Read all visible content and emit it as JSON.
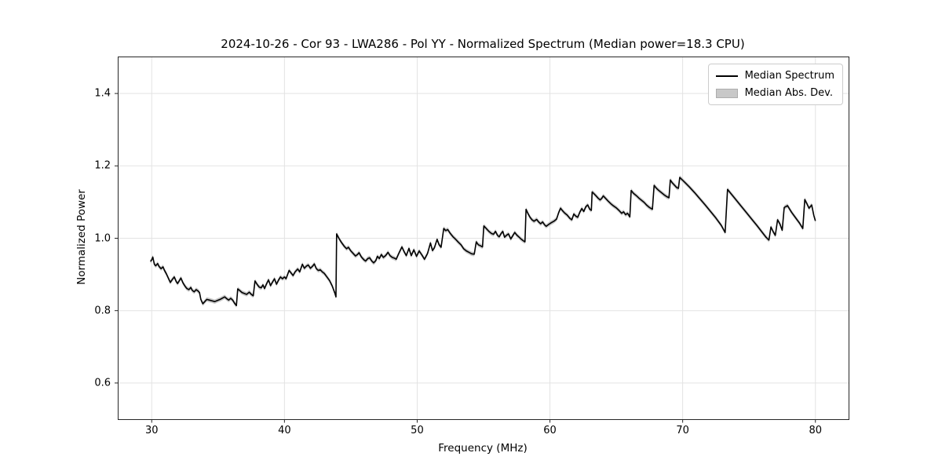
{
  "chart_data": {
    "type": "line",
    "title": "2024-10-26 - Cor 93 - LWA286 - Pol YY - Normalized Spectrum (Median power=18.3 CPU)",
    "xlabel": "Frequency (MHz)",
    "ylabel": "Normalized Power",
    "xlim": [
      27.5,
      82.5
    ],
    "ylim": [
      0.5,
      1.5
    ],
    "xticks": [
      30,
      40,
      50,
      60,
      70,
      80
    ],
    "xtick_labels": [
      "30",
      "40",
      "50",
      "60",
      "70",
      "80"
    ],
    "yticks": [
      0.6,
      0.8,
      1.0,
      1.2,
      1.4
    ],
    "ytick_labels": [
      "0.6",
      "0.8",
      "1.0",
      "1.2",
      "1.4"
    ],
    "grid": true,
    "legend_position": "upper right",
    "legend": [
      {
        "label": "Median Spectrum",
        "type": "line",
        "color": "#000000"
      },
      {
        "label": "Median Abs. Dev.",
        "type": "patch",
        "color": "#c8c8c8"
      }
    ],
    "colors": {
      "line": "#000000",
      "band": "#c8c8c8",
      "grid": "#e3e3e3",
      "spine": "#262626"
    },
    "mad_halfwidth": 0.006,
    "series": [
      {
        "name": "Median Spectrum",
        "points": [
          [
            29.9,
            0.936
          ],
          [
            30.0,
            0.94
          ],
          [
            30.08,
            0.948
          ],
          [
            30.2,
            0.928
          ],
          [
            30.3,
            0.924
          ],
          [
            30.45,
            0.93
          ],
          [
            30.55,
            0.922
          ],
          [
            30.7,
            0.916
          ],
          [
            30.85,
            0.921
          ],
          [
            30.95,
            0.912
          ],
          [
            31.1,
            0.902
          ],
          [
            31.25,
            0.89
          ],
          [
            31.4,
            0.878
          ],
          [
            31.55,
            0.886
          ],
          [
            31.7,
            0.893
          ],
          [
            31.85,
            0.88
          ],
          [
            31.95,
            0.875
          ],
          [
            32.1,
            0.884
          ],
          [
            32.2,
            0.89
          ],
          [
            32.35,
            0.877
          ],
          [
            32.5,
            0.868
          ],
          [
            32.65,
            0.861
          ],
          [
            32.8,
            0.858
          ],
          [
            32.95,
            0.864
          ],
          [
            33.05,
            0.856
          ],
          [
            33.2,
            0.852
          ],
          [
            33.35,
            0.858
          ],
          [
            33.5,
            0.854
          ],
          [
            33.6,
            0.85
          ],
          [
            33.7,
            0.831
          ],
          [
            33.85,
            0.819
          ],
          [
            34.0,
            0.825
          ],
          [
            34.15,
            0.831
          ],
          [
            34.35,
            0.829
          ],
          [
            34.55,
            0.827
          ],
          [
            34.75,
            0.825
          ],
          [
            34.95,
            0.828
          ],
          [
            35.15,
            0.831
          ],
          [
            35.35,
            0.835
          ],
          [
            35.5,
            0.838
          ],
          [
            35.65,
            0.833
          ],
          [
            35.8,
            0.829
          ],
          [
            35.95,
            0.834
          ],
          [
            36.1,
            0.829
          ],
          [
            36.25,
            0.82
          ],
          [
            36.38,
            0.814
          ],
          [
            36.48,
            0.86
          ],
          [
            36.65,
            0.855
          ],
          [
            36.8,
            0.85
          ],
          [
            37.0,
            0.847
          ],
          [
            37.15,
            0.845
          ],
          [
            37.35,
            0.851
          ],
          [
            37.5,
            0.845
          ],
          [
            37.65,
            0.841
          ],
          [
            37.78,
            0.882
          ],
          [
            37.95,
            0.872
          ],
          [
            38.1,
            0.865
          ],
          [
            38.25,
            0.863
          ],
          [
            38.38,
            0.871
          ],
          [
            38.5,
            0.861
          ],
          [
            38.65,
            0.874
          ],
          [
            38.8,
            0.885
          ],
          [
            38.95,
            0.869
          ],
          [
            39.1,
            0.879
          ],
          [
            39.25,
            0.888
          ],
          [
            39.4,
            0.873
          ],
          [
            39.55,
            0.884
          ],
          [
            39.7,
            0.893
          ],
          [
            39.85,
            0.888
          ],
          [
            40.0,
            0.893
          ],
          [
            40.12,
            0.888
          ],
          [
            40.35,
            0.911
          ],
          [
            40.5,
            0.904
          ],
          [
            40.65,
            0.897
          ],
          [
            40.8,
            0.907
          ],
          [
            41.0,
            0.915
          ],
          [
            41.15,
            0.907
          ],
          [
            41.35,
            0.928
          ],
          [
            41.5,
            0.917
          ],
          [
            41.65,
            0.923
          ],
          [
            41.8,
            0.926
          ],
          [
            41.95,
            0.917
          ],
          [
            42.1,
            0.922
          ],
          [
            42.25,
            0.929
          ],
          [
            42.4,
            0.916
          ],
          [
            42.55,
            0.911
          ],
          [
            42.7,
            0.913
          ],
          [
            42.85,
            0.907
          ],
          [
            43.0,
            0.903
          ],
          [
            43.2,
            0.893
          ],
          [
            43.4,
            0.883
          ],
          [
            43.6,
            0.868
          ],
          [
            43.8,
            0.848
          ],
          [
            43.88,
            0.838
          ],
          [
            43.93,
            1.012
          ],
          [
            44.1,
            1.0
          ],
          [
            44.3,
            0.988
          ],
          [
            44.5,
            0.978
          ],
          [
            44.68,
            0.971
          ],
          [
            44.82,
            0.975
          ],
          [
            45.0,
            0.965
          ],
          [
            45.2,
            0.957
          ],
          [
            45.35,
            0.951
          ],
          [
            45.5,
            0.955
          ],
          [
            45.62,
            0.96
          ],
          [
            45.8,
            0.948
          ],
          [
            46.0,
            0.94
          ],
          [
            46.12,
            0.937
          ],
          [
            46.28,
            0.944
          ],
          [
            46.42,
            0.946
          ],
          [
            46.58,
            0.937
          ],
          [
            46.72,
            0.932
          ],
          [
            46.88,
            0.938
          ],
          [
            47.0,
            0.95
          ],
          [
            47.15,
            0.944
          ],
          [
            47.3,
            0.955
          ],
          [
            47.45,
            0.947
          ],
          [
            47.62,
            0.952
          ],
          [
            47.8,
            0.961
          ],
          [
            47.95,
            0.952
          ],
          [
            48.12,
            0.947
          ],
          [
            48.28,
            0.945
          ],
          [
            48.42,
            0.942
          ],
          [
            48.6,
            0.957
          ],
          [
            48.85,
            0.976
          ],
          [
            49.0,
            0.964
          ],
          [
            49.18,
            0.952
          ],
          [
            49.38,
            0.972
          ],
          [
            49.55,
            0.952
          ],
          [
            49.75,
            0.968
          ],
          [
            49.95,
            0.95
          ],
          [
            50.15,
            0.965
          ],
          [
            50.35,
            0.954
          ],
          [
            50.55,
            0.942
          ],
          [
            50.78,
            0.958
          ],
          [
            51.0,
            0.987
          ],
          [
            51.15,
            0.966
          ],
          [
            51.3,
            0.974
          ],
          [
            51.5,
            0.997
          ],
          [
            51.65,
            0.982
          ],
          [
            51.8,
            0.975
          ],
          [
            52.0,
            1.027
          ],
          [
            52.15,
            1.021
          ],
          [
            52.3,
            1.024
          ],
          [
            52.5,
            1.013
          ],
          [
            52.7,
            1.004
          ],
          [
            52.9,
            0.997
          ],
          [
            53.1,
            0.989
          ],
          [
            53.3,
            0.982
          ],
          [
            53.5,
            0.971
          ],
          [
            53.7,
            0.965
          ],
          [
            53.9,
            0.961
          ],
          [
            54.1,
            0.957
          ],
          [
            54.3,
            0.956
          ],
          [
            54.45,
            0.99
          ],
          [
            54.6,
            0.982
          ],
          [
            54.78,
            0.979
          ],
          [
            54.92,
            0.976
          ],
          [
            55.02,
            1.034
          ],
          [
            55.2,
            1.027
          ],
          [
            55.4,
            1.019
          ],
          [
            55.6,
            1.013
          ],
          [
            55.75,
            1.011
          ],
          [
            55.9,
            1.019
          ],
          [
            56.05,
            1.008
          ],
          [
            56.18,
            1.004
          ],
          [
            56.32,
            1.013
          ],
          [
            56.45,
            1.019
          ],
          [
            56.58,
            1.003
          ],
          [
            56.72,
            1.008
          ],
          [
            56.88,
            1.012
          ],
          [
            57.05,
            0.998
          ],
          [
            57.2,
            1.007
          ],
          [
            57.35,
            1.016
          ],
          [
            57.5,
            1.009
          ],
          [
            57.65,
            1.004
          ],
          [
            57.82,
            0.998
          ],
          [
            58.0,
            0.993
          ],
          [
            58.12,
            0.99
          ],
          [
            58.2,
            1.08
          ],
          [
            58.35,
            1.068
          ],
          [
            58.5,
            1.058
          ],
          [
            58.65,
            1.051
          ],
          [
            58.8,
            1.047
          ],
          [
            59.0,
            1.052
          ],
          [
            59.15,
            1.045
          ],
          [
            59.3,
            1.04
          ],
          [
            59.45,
            1.045
          ],
          [
            59.6,
            1.037
          ],
          [
            59.72,
            1.033
          ],
          [
            59.9,
            1.038
          ],
          [
            60.1,
            1.043
          ],
          [
            60.3,
            1.047
          ],
          [
            60.5,
            1.053
          ],
          [
            60.65,
            1.07
          ],
          [
            60.8,
            1.083
          ],
          [
            60.95,
            1.076
          ],
          [
            61.1,
            1.07
          ],
          [
            61.3,
            1.064
          ],
          [
            61.5,
            1.055
          ],
          [
            61.65,
            1.051
          ],
          [
            61.8,
            1.067
          ],
          [
            61.95,
            1.061
          ],
          [
            62.1,
            1.058
          ],
          [
            62.25,
            1.072
          ],
          [
            62.4,
            1.082
          ],
          [
            62.55,
            1.074
          ],
          [
            62.7,
            1.087
          ],
          [
            62.85,
            1.092
          ],
          [
            63.0,
            1.08
          ],
          [
            63.12,
            1.077
          ],
          [
            63.18,
            1.128
          ],
          [
            63.32,
            1.123
          ],
          [
            63.48,
            1.117
          ],
          [
            63.62,
            1.111
          ],
          [
            63.78,
            1.106
          ],
          [
            63.9,
            1.11
          ],
          [
            64.02,
            1.117
          ],
          [
            64.2,
            1.11
          ],
          [
            64.4,
            1.102
          ],
          [
            64.6,
            1.095
          ],
          [
            64.8,
            1.089
          ],
          [
            65.0,
            1.084
          ],
          [
            65.2,
            1.077
          ],
          [
            65.4,
            1.069
          ],
          [
            65.55,
            1.073
          ],
          [
            65.7,
            1.065
          ],
          [
            65.85,
            1.069
          ],
          [
            66.02,
            1.059
          ],
          [
            66.12,
            1.132
          ],
          [
            66.3,
            1.124
          ],
          [
            66.5,
            1.118
          ],
          [
            66.7,
            1.111
          ],
          [
            66.9,
            1.105
          ],
          [
            67.1,
            1.099
          ],
          [
            67.3,
            1.091
          ],
          [
            67.5,
            1.085
          ],
          [
            67.72,
            1.08
          ],
          [
            67.85,
            1.146
          ],
          [
            68.0,
            1.139
          ],
          [
            68.2,
            1.132
          ],
          [
            68.4,
            1.126
          ],
          [
            68.6,
            1.12
          ],
          [
            68.8,
            1.115
          ],
          [
            68.97,
            1.112
          ],
          [
            69.07,
            1.161
          ],
          [
            69.22,
            1.153
          ],
          [
            69.4,
            1.146
          ],
          [
            69.55,
            1.14
          ],
          [
            69.68,
            1.138
          ],
          [
            69.78,
            1.168
          ],
          [
            69.95,
            1.162
          ],
          [
            70.2,
            1.153
          ],
          [
            70.5,
            1.142
          ],
          [
            70.9,
            1.126
          ],
          [
            71.3,
            1.109
          ],
          [
            71.7,
            1.092
          ],
          [
            72.1,
            1.074
          ],
          [
            72.5,
            1.056
          ],
          [
            72.9,
            1.036
          ],
          [
            73.2,
            1.016
          ],
          [
            73.38,
            1.135
          ],
          [
            73.6,
            1.125
          ],
          [
            74.0,
            1.107
          ],
          [
            74.4,
            1.089
          ],
          [
            74.8,
            1.071
          ],
          [
            75.2,
            1.053
          ],
          [
            75.6,
            1.035
          ],
          [
            76.0,
            1.016
          ],
          [
            76.3,
            1.002
          ],
          [
            76.5,
            0.995
          ],
          [
            76.65,
            1.031
          ],
          [
            76.82,
            1.018
          ],
          [
            76.98,
            1.008
          ],
          [
            77.15,
            1.051
          ],
          [
            77.32,
            1.04
          ],
          [
            77.5,
            1.022
          ],
          [
            77.65,
            1.085
          ],
          [
            77.9,
            1.09
          ],
          [
            78.2,
            1.072
          ],
          [
            78.5,
            1.057
          ],
          [
            78.8,
            1.042
          ],
          [
            79.05,
            1.027
          ],
          [
            79.2,
            1.107
          ],
          [
            79.38,
            1.094
          ],
          [
            79.52,
            1.083
          ],
          [
            79.72,
            1.092
          ],
          [
            79.88,
            1.063
          ],
          [
            80.0,
            1.048
          ]
        ]
      }
    ]
  }
}
